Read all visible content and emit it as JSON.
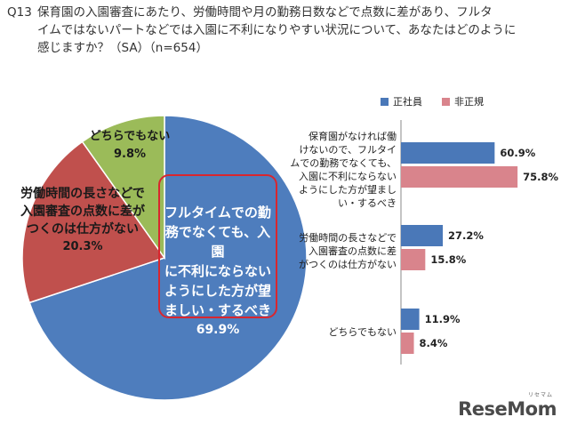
{
  "question": {
    "number": "Q13",
    "line1": "保育園の入園審査にあたり、労働時間や月の勤務日数などで点数に差があり、フルタ",
    "line2": "イムではないパートなどでは入園に不利になりやすい状況について、あなたはどのように",
    "line3": "感じますか？（SA）（n=654）"
  },
  "colors": {
    "seishain": "#4a78b8",
    "hiseiki": "#d9848c",
    "pie_blue": "#4e7dbd",
    "pie_red": "#c0504d",
    "pie_green": "#9bbb59",
    "highlight_border": "#d9262e"
  },
  "watermark": {
    "text": "ReseMom",
    "ruby": "リセマム"
  },
  "chart_data": [
    {
      "type": "pie",
      "slices": [
        {
          "label": "フルタイムでの勤務でなくても、入園に不利にならないようにした方が望ましい・するべき",
          "label_lines": [
            "フルタイムでの勤",
            "務でなくても、入園",
            "に不利にならない",
            "ようにした方が望",
            "ましい・するべき"
          ],
          "value": 69.9,
          "value_text": "69.9%"
        },
        {
          "label": "労働時間の長さなどで入園審査の点数に差がつくのは仕方がない",
          "label_lines": [
            "労働時間の長さなどで",
            "入園審査の点数に差が",
            "つくのは仕方がない"
          ],
          "value": 20.3,
          "value_text": "20.3%"
        },
        {
          "label": "どちらでもない",
          "label_lines": [
            "どちらでもない"
          ],
          "value": 9.8,
          "value_text": "9.8%"
        }
      ]
    },
    {
      "type": "bar",
      "orientation": "horizontal",
      "legend": [
        "正社員",
        "非正規"
      ],
      "legend_position": "top-right",
      "categories": [
        {
          "lines": [
            "保育園がなければ働",
            "けないので、フルタイ",
            "ムでの勤務でなくても、",
            "入園に不利にならない",
            "ようにした方が望まし",
            "い・するべき"
          ]
        },
        {
          "lines": [
            "労働時間の長さなどで",
            "入園審査の点数に差",
            "がつくのは仕方がない"
          ]
        },
        {
          "lines": [
            "どちらでもない"
          ]
        }
      ],
      "series": [
        {
          "name": "正社員",
          "values": [
            60.9,
            27.2,
            11.9
          ],
          "labels": [
            "60.9%",
            "27.2%",
            "11.9%"
          ]
        },
        {
          "name": "非正規",
          "values": [
            75.8,
            15.8,
            8.4
          ],
          "labels": [
            "75.8%",
            "15.8%",
            "8.4%"
          ]
        }
      ],
      "xlim": [
        0,
        100
      ]
    }
  ]
}
